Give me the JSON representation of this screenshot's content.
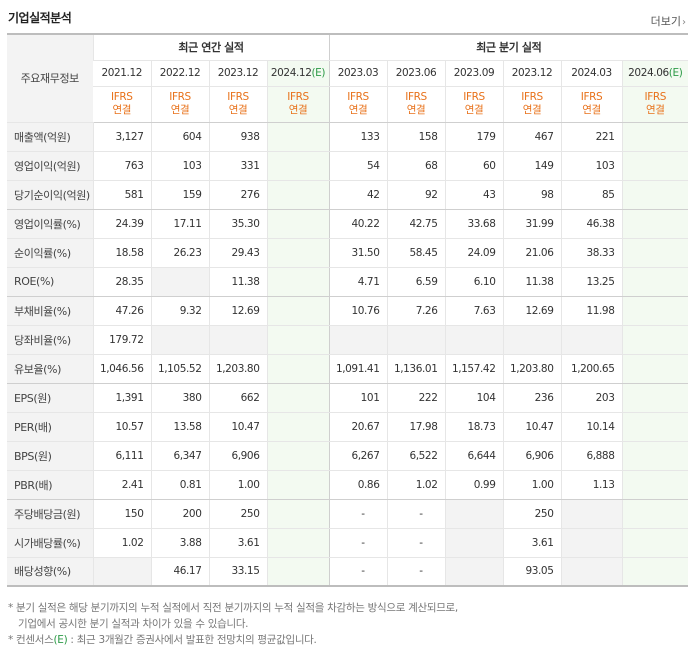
{
  "header": {
    "title": "기업실적분석",
    "more": "더보기",
    "more_arrow": "›"
  },
  "table": {
    "label_header": "주요재무정보",
    "group_annual": "최근 연간 실적",
    "group_quarter": "최근 분기 실적",
    "periods": [
      {
        "p": "2021.12",
        "e": ""
      },
      {
        "p": "2022.12",
        "e": ""
      },
      {
        "p": "2023.12",
        "e": ""
      },
      {
        "p": "2024.12",
        "e": "(E)"
      },
      {
        "p": "2023.03",
        "e": ""
      },
      {
        "p": "2023.06",
        "e": ""
      },
      {
        "p": "2023.09",
        "e": ""
      },
      {
        "p": "2023.12",
        "e": ""
      },
      {
        "p": "2024.03",
        "e": ""
      },
      {
        "p": "2024.06",
        "e": "(E)"
      }
    ],
    "ifrs_line1": "IFRS",
    "ifrs_line2": "연결",
    "rows": [
      {
        "label": "매출액(억원)",
        "values": [
          "3,127",
          "604",
          "938",
          "",
          "133",
          "158",
          "179",
          "467",
          "221",
          ""
        ]
      },
      {
        "label": "영업이익(억원)",
        "values": [
          "763",
          "103",
          "331",
          "",
          "54",
          "68",
          "60",
          "149",
          "103",
          ""
        ]
      },
      {
        "label": "당기순이익(억원)",
        "values": [
          "581",
          "159",
          "276",
          "",
          "42",
          "92",
          "43",
          "98",
          "85",
          ""
        ]
      },
      {
        "label": "영업이익률(%)",
        "values": [
          "24.39",
          "17.11",
          "35.30",
          "",
          "40.22",
          "42.75",
          "33.68",
          "31.99",
          "46.38",
          ""
        ]
      },
      {
        "label": "순이익률(%)",
        "values": [
          "18.58",
          "26.23",
          "29.43",
          "",
          "31.50",
          "58.45",
          "24.09",
          "21.06",
          "38.33",
          ""
        ]
      },
      {
        "label": "ROE(%)",
        "values": [
          "28.35",
          "",
          "11.38",
          "",
          "4.71",
          "6.59",
          "6.10",
          "11.38",
          "13.25",
          ""
        ]
      },
      {
        "label": "부채비율(%)",
        "values": [
          "47.26",
          "9.32",
          "12.69",
          "",
          "10.76",
          "7.26",
          "7.63",
          "12.69",
          "11.98",
          ""
        ]
      },
      {
        "label": "당좌비율(%)",
        "values": [
          "179.72",
          "",
          "",
          "",
          "",
          "",
          "",
          "",
          "",
          ""
        ]
      },
      {
        "label": "유보율(%)",
        "values": [
          "1,046.56",
          "1,105.52",
          "1,203.80",
          "",
          "1,091.41",
          "1,136.01",
          "1,157.42",
          "1,203.80",
          "1,200.65",
          ""
        ]
      },
      {
        "label": "EPS(원)",
        "values": [
          "1,391",
          "380",
          "662",
          "",
          "101",
          "222",
          "104",
          "236",
          "203",
          ""
        ]
      },
      {
        "label": "PER(배)",
        "values": [
          "10.57",
          "13.58",
          "10.47",
          "",
          "20.67",
          "17.98",
          "18.73",
          "10.47",
          "10.14",
          ""
        ]
      },
      {
        "label": "BPS(원)",
        "values": [
          "6,111",
          "6,347",
          "6,906",
          "",
          "6,267",
          "6,522",
          "6,644",
          "6,906",
          "6,888",
          ""
        ]
      },
      {
        "label": "PBR(배)",
        "values": [
          "2.41",
          "0.81",
          "1.00",
          "",
          "0.86",
          "1.02",
          "0.99",
          "1.00",
          "1.13",
          ""
        ]
      },
      {
        "label": "주당배당금(원)",
        "values": [
          "150",
          "200",
          "250",
          "",
          "-",
          "-",
          "",
          "250",
          "",
          ""
        ]
      },
      {
        "label": "시가배당률(%)",
        "values": [
          "1.02",
          "3.88",
          "3.61",
          "",
          "-",
          "-",
          "",
          "3.61",
          "",
          ""
        ]
      },
      {
        "label": "배당성향(%)",
        "values": [
          "",
          "46.17",
          "33.15",
          "",
          "-",
          "-",
          "",
          "93.05",
          "",
          ""
        ]
      }
    ]
  },
  "notes": {
    "line1": "* 분기 실적은 해당 분기까지의 누적 실적에서 직전 분기까지의 누적 실적을 차감하는 방식으로 계산되므로,",
    "line2": "기업에서 공시한 분기 실적과 차이가 있을 수 있습니다.",
    "line3_prefix": "* 컨센서스",
    "line3_e": "(E)",
    "line3_rest": " : 최근 3개월간 증권사에서 발표한 전망치의 평균값입니다."
  }
}
